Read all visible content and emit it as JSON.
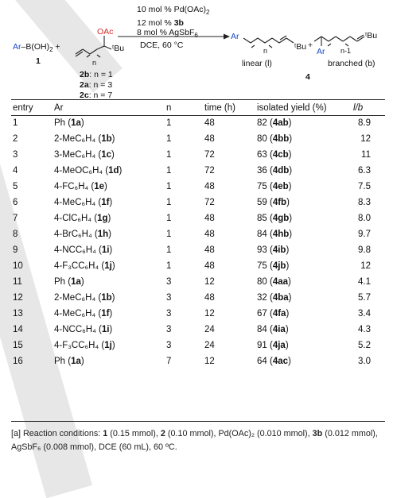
{
  "scheme": {
    "reactant1": {
      "group": "Ar",
      "rest": "–B(OH)",
      "sub": "2",
      "plus": "+",
      "label": "1"
    },
    "reactant2": {
      "oac": "OAc",
      "tbu": "ᵗBu",
      "n": "n"
    },
    "variants": [
      {
        "label": "2b",
        "n": ": n = 1"
      },
      {
        "label": "2a",
        "n": ": n = 3"
      },
      {
        "label": "2c",
        "n": ": n = 7"
      }
    ],
    "conditions": {
      "line1_pre": "10 mol % Pd(OAc)",
      "line1_sub": "2",
      "line2_pre": "12 mol % ",
      "line2_bold": "3b",
      "line3_pre": "8 mol % AgSbF",
      "line3_sub": "6",
      "below": "DCE, 60 °C"
    },
    "product_linear": {
      "ar": "Ar",
      "n": "n",
      "tbu": "ᵗBu",
      "plus": "+",
      "caption": "linear (l)"
    },
    "product_branched": {
      "ar": "Ar",
      "n": "n-1",
      "tbu": "ᵗBu",
      "caption": "branched (b)"
    },
    "product_label": "4"
  },
  "table": {
    "headers": [
      "entry",
      "Ar",
      "n",
      "time (h)",
      "isolated yield (%)",
      "l/b"
    ],
    "rows": [
      {
        "entry": "1",
        "ar": "Ph",
        "ar_code": "1a",
        "n": "1",
        "time": "48",
        "yield": "82",
        "prod": "4ab",
        "lb": "8.9"
      },
      {
        "entry": "2",
        "ar": "2-MeC₆H₄",
        "ar_code": "1b",
        "n": "1",
        "time": "48",
        "yield": "80",
        "prod": "4bb",
        "lb": "12"
      },
      {
        "entry": "3",
        "ar": "3-MeC₆H₄",
        "ar_code": "1c",
        "n": "1",
        "time": "72",
        "yield": "63",
        "prod": "4cb",
        "lb": "11"
      },
      {
        "entry": "4",
        "ar": "4-MeOC₆H₄",
        "ar_code": "1d",
        "n": "1",
        "time": "72",
        "yield": "36",
        "prod": "4db",
        "lb": "6.3"
      },
      {
        "entry": "5",
        "ar": "4-FC₆H₄",
        "ar_code": "1e",
        "n": "1",
        "time": "48",
        "yield": "75",
        "prod": "4eb",
        "lb": "7.5"
      },
      {
        "entry": "6",
        "ar": "4-MeC₆H₄",
        "ar_code": "1f",
        "n": "1",
        "time": "72",
        "yield": "59",
        "prod": "4fb",
        "lb": "8.3"
      },
      {
        "entry": "7",
        "ar": "4-ClC₆H₄",
        "ar_code": "1g",
        "n": "1",
        "time": "48",
        "yield": "85",
        "prod": "4gb",
        "lb": "8.0"
      },
      {
        "entry": "8",
        "ar": "4-BrC₆H₄",
        "ar_code": "1h",
        "n": "1",
        "time": "48",
        "yield": "84",
        "prod": "4hb",
        "lb": "9.7"
      },
      {
        "entry": "9",
        "ar": "4-NCC₆H₄",
        "ar_code": "1i",
        "n": "1",
        "time": "48",
        "yield": "93",
        "prod": "4ib",
        "lb": "9.8"
      },
      {
        "entry": "10",
        "ar": "4-F₃CC₆H₄",
        "ar_code": "1j",
        "n": "1",
        "time": "48",
        "yield": "75",
        "prod": "4jb",
        "lb": "12"
      },
      {
        "entry": "11",
        "ar": "Ph",
        "ar_code": "1a",
        "n": "3",
        "time": "12",
        "yield": "80",
        "prod": "4aa",
        "lb": "4.1"
      },
      {
        "entry": "12",
        "ar": "2-MeC₆H₄",
        "ar_code": "1b",
        "n": "3",
        "time": "48",
        "yield": "32",
        "prod": "4ba",
        "lb": "5.7"
      },
      {
        "entry": "13",
        "ar": "4-MeC₆H₄",
        "ar_code": "1f",
        "n": "3",
        "time": "12",
        "yield": "67",
        "prod": "4fa",
        "lb": "3.4"
      },
      {
        "entry": "14",
        "ar": "4-NCC₆H₄",
        "ar_code": "1i",
        "n": "3",
        "time": "24",
        "yield": "84",
        "prod": "4ia",
        "lb": "4.3"
      },
      {
        "entry": "15",
        "ar": "4-F₃CC₆H₄",
        "ar_code": "1j",
        "n": "3",
        "time": "24",
        "yield": "91",
        "prod": "4ja",
        "lb": "5.2"
      },
      {
        "entry": "16",
        "ar": "Ph",
        "ar_code": "1a",
        "n": "7",
        "time": "12",
        "yield": "64",
        "prod": "4ac",
        "lb": "3.0"
      }
    ]
  },
  "footnote": {
    "t0": "[a] Reaction conditions: ",
    "b1": "1",
    "t1": " (0.15 mmol), ",
    "b2": "2",
    "t2": " (0.10 mmol), Pd(OAc)₂ (0.010 mmol), ",
    "b3": "3b",
    "t3": " (0.012 mmol), AgSbF₆ (0.008 mmol), DCE (60 mL), 60 ºC."
  },
  "colors": {
    "text": "#111111",
    "accent_red": "#d62b2b",
    "ar_blue": "#1a46c8",
    "watermark": "#e7e7e7"
  }
}
